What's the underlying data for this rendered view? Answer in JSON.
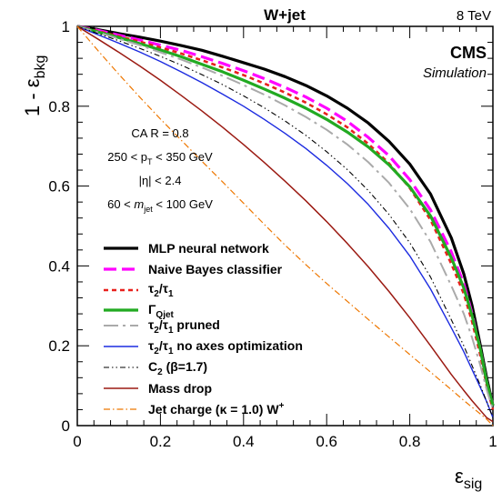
{
  "chart_data": {
    "type": "line",
    "title": "W+jet",
    "energy": "8 TeV",
    "experiment": "CMS",
    "experiment_sub": "Simulation",
    "xlabel": "ε",
    "xlabel_sub": "sig",
    "ylabel": "1 - ε",
    "ylabel_sub": "bkg",
    "xlim": [
      0,
      1
    ],
    "ylim": [
      0,
      1
    ],
    "x_ticks": [
      {
        "value": 0,
        "label": "0"
      },
      {
        "value": 0.2,
        "label": "0.2"
      },
      {
        "value": 0.4,
        "label": "0.4"
      },
      {
        "value": 0.6,
        "label": "0.6"
      },
      {
        "value": 0.8,
        "label": "0.8"
      },
      {
        "value": 1,
        "label": "1"
      }
    ],
    "y_ticks": [
      {
        "value": 0,
        "label": "0"
      },
      {
        "value": 0.2,
        "label": "0.2"
      },
      {
        "value": 0.4,
        "label": "0.4"
      },
      {
        "value": 0.6,
        "label": "0.6"
      },
      {
        "value": 0.8,
        "label": "0.8"
      },
      {
        "value": 1,
        "label": "1"
      }
    ],
    "grid": false,
    "legend_position": "bottom-left",
    "cuts": {
      "ca": "CA R = 0.8",
      "pt_left": "250 < p",
      "pt_sub": "T",
      "pt_right": " < 350 GeV",
      "eta": "|η| < 2.4",
      "mass_left": "60 < ",
      "mass_m": "m",
      "mass_sub": "jet",
      "mass_right": " < 100 GeV"
    },
    "legend": {
      "mlp": "MLP neural network",
      "nb": "Naive Bayes classifier",
      "tau_main": "τ",
      "tau_sub2": "2",
      "tau_slash": "/τ",
      "tau_sub1": "1",
      "gamma_main": "Γ",
      "gamma_sub": "Qjet",
      "pruned_suffix": " pruned",
      "noaxes_suffix": " no axes optimization",
      "c2_main": "C",
      "c2_sub": "2",
      "c2_suffix": " (β=1.7)",
      "massdrop": "Mass drop",
      "jetcharge": "Jet charge (κ = 1.0) W",
      "jetcharge_sup": "+"
    },
    "series": [
      {
        "id": "mlp",
        "color": "#000000",
        "width": 3.2,
        "dash": "",
        "x": [
          0,
          0.05,
          0.1,
          0.15,
          0.2,
          0.25,
          0.3,
          0.35,
          0.4,
          0.45,
          0.5,
          0.55,
          0.6,
          0.65,
          0.7,
          0.75,
          0.8,
          0.85,
          0.9,
          0.93,
          0.95,
          0.97,
          0.985,
          1.0
        ],
        "y": [
          1.0,
          0.992,
          0.982,
          0.973,
          0.963,
          0.952,
          0.94,
          0.925,
          0.909,
          0.893,
          0.874,
          0.852,
          0.826,
          0.795,
          0.758,
          0.712,
          0.655,
          0.58,
          0.47,
          0.38,
          0.3,
          0.2,
          0.12,
          0.05
        ]
      },
      {
        "id": "nb",
        "color": "#ff00ff",
        "width": 3.2,
        "dash": "14,6",
        "x": [
          0,
          0.05,
          0.1,
          0.15,
          0.2,
          0.25,
          0.3,
          0.35,
          0.4,
          0.45,
          0.5,
          0.55,
          0.6,
          0.65,
          0.7,
          0.75,
          0.8,
          0.85,
          0.9,
          0.93,
          0.95,
          0.97,
          0.985,
          1.0
        ],
        "y": [
          1.0,
          0.99,
          0.978,
          0.966,
          0.953,
          0.94,
          0.924,
          0.907,
          0.889,
          0.869,
          0.847,
          0.823,
          0.795,
          0.762,
          0.722,
          0.676,
          0.616,
          0.54,
          0.435,
          0.355,
          0.28,
          0.19,
          0.11,
          0.05
        ]
      },
      {
        "id": "tau21",
        "color": "#e8201c",
        "width": 2.6,
        "dash": "5,4",
        "x": [
          0,
          0.05,
          0.1,
          0.15,
          0.2,
          0.25,
          0.3,
          0.35,
          0.4,
          0.45,
          0.5,
          0.55,
          0.6,
          0.65,
          0.7,
          0.75,
          0.8,
          0.85,
          0.9,
          0.93,
          0.95,
          0.97,
          0.985,
          1.0
        ],
        "y": [
          1.0,
          0.988,
          0.975,
          0.962,
          0.947,
          0.932,
          0.915,
          0.897,
          0.878,
          0.857,
          0.834,
          0.809,
          0.78,
          0.747,
          0.706,
          0.657,
          0.595,
          0.515,
          0.405,
          0.33,
          0.26,
          0.175,
          0.1,
          0.04
        ]
      },
      {
        "id": "gamma",
        "color": "#22aa22",
        "width": 3.2,
        "dash": "",
        "x": [
          0,
          0.05,
          0.1,
          0.15,
          0.2,
          0.25,
          0.3,
          0.35,
          0.4,
          0.45,
          0.5,
          0.55,
          0.6,
          0.65,
          0.7,
          0.75,
          0.8,
          0.85,
          0.9,
          0.93,
          0.95,
          0.97,
          0.985,
          1.0
        ],
        "y": [
          1.0,
          0.986,
          0.972,
          0.957,
          0.941,
          0.924,
          0.905,
          0.886,
          0.865,
          0.843,
          0.82,
          0.795,
          0.767,
          0.735,
          0.698,
          0.653,
          0.598,
          0.525,
          0.42,
          0.345,
          0.275,
          0.19,
          0.11,
          0.05
        ]
      },
      {
        "id": "tau21_pruned",
        "color": "#aaaaaa",
        "width": 2,
        "dash": "16,5,3,5",
        "x": [
          0,
          0.05,
          0.1,
          0.15,
          0.2,
          0.25,
          0.3,
          0.35,
          0.4,
          0.45,
          0.5,
          0.55,
          0.6,
          0.65,
          0.7,
          0.75,
          0.8,
          0.85,
          0.9,
          0.93,
          0.95,
          0.97,
          0.985,
          1.0
        ],
        "y": [
          1.0,
          0.985,
          0.969,
          0.953,
          0.935,
          0.917,
          0.897,
          0.876,
          0.853,
          0.829,
          0.802,
          0.773,
          0.741,
          0.704,
          0.66,
          0.608,
          0.543,
          0.46,
          0.35,
          0.28,
          0.22,
          0.15,
          0.09,
          0.04
        ]
      },
      {
        "id": "tau21_noaxes",
        "color": "#1c2be0",
        "width": 1.4,
        "dash": "",
        "x": [
          0,
          0.05,
          0.1,
          0.15,
          0.2,
          0.25,
          0.3,
          0.35,
          0.4,
          0.45,
          0.5,
          0.55,
          0.6,
          0.65,
          0.7,
          0.75,
          0.8,
          0.85,
          0.9,
          0.93,
          0.95,
          0.97,
          0.985,
          1.0
        ],
        "y": [
          1.0,
          0.979,
          0.958,
          0.936,
          0.912,
          0.886,
          0.859,
          0.83,
          0.8,
          0.767,
          0.732,
          0.694,
          0.652,
          0.606,
          0.554,
          0.494,
          0.425,
          0.342,
          0.245,
          0.185,
          0.14,
          0.095,
          0.06,
          0.02
        ]
      },
      {
        "id": "c2",
        "color": "#000000",
        "width": 1.1,
        "dash": "6,3,1.5,3,1.5,3",
        "x": [
          0,
          0.05,
          0.1,
          0.15,
          0.2,
          0.25,
          0.3,
          0.35,
          0.4,
          0.45,
          0.5,
          0.55,
          0.6,
          0.65,
          0.7,
          0.75,
          0.8,
          0.85,
          0.9,
          0.93,
          0.95,
          0.97,
          0.985,
          1.0
        ],
        "y": [
          1.0,
          0.982,
          0.964,
          0.945,
          0.925,
          0.903,
          0.879,
          0.854,
          0.826,
          0.796,
          0.763,
          0.727,
          0.686,
          0.641,
          0.589,
          0.529,
          0.458,
          0.372,
          0.265,
          0.2,
          0.15,
          0.1,
          0.06,
          0.02
        ]
      },
      {
        "id": "massdrop",
        "color": "#9b1a12",
        "width": 1.5,
        "dash": "",
        "x": [
          0,
          0.05,
          0.1,
          0.15,
          0.2,
          0.25,
          0.3,
          0.35,
          0.4,
          0.45,
          0.5,
          0.55,
          0.6,
          0.65,
          0.7,
          0.75,
          0.8,
          0.85,
          0.9,
          0.93,
          0.95,
          0.97,
          0.985,
          1.0
        ],
        "y": [
          1.0,
          0.968,
          0.935,
          0.901,
          0.865,
          0.827,
          0.788,
          0.747,
          0.704,
          0.659,
          0.612,
          0.563,
          0.511,
          0.456,
          0.398,
          0.336,
          0.27,
          0.2,
          0.128,
          0.088,
          0.062,
          0.038,
          0.02,
          0.01
        ]
      },
      {
        "id": "jetcharge",
        "color": "#ee7700",
        "width": 1.2,
        "dash": "7,3,1.5,3",
        "x": [
          0,
          0.05,
          0.1,
          0.15,
          0.2,
          0.25,
          0.3,
          0.35,
          0.4,
          0.45,
          0.5,
          0.55,
          0.6,
          0.65,
          0.7,
          0.75,
          0.8,
          0.85,
          0.9,
          0.93,
          0.95,
          0.97,
          0.985,
          1.0
        ],
        "y": [
          1.0,
          0.939,
          0.88,
          0.823,
          0.768,
          0.715,
          0.662,
          0.61,
          0.557,
          0.504,
          0.452,
          0.403,
          0.356,
          0.311,
          0.266,
          0.222,
          0.178,
          0.134,
          0.09,
          0.063,
          0.046,
          0.029,
          0.016,
          0.0
        ]
      }
    ]
  }
}
